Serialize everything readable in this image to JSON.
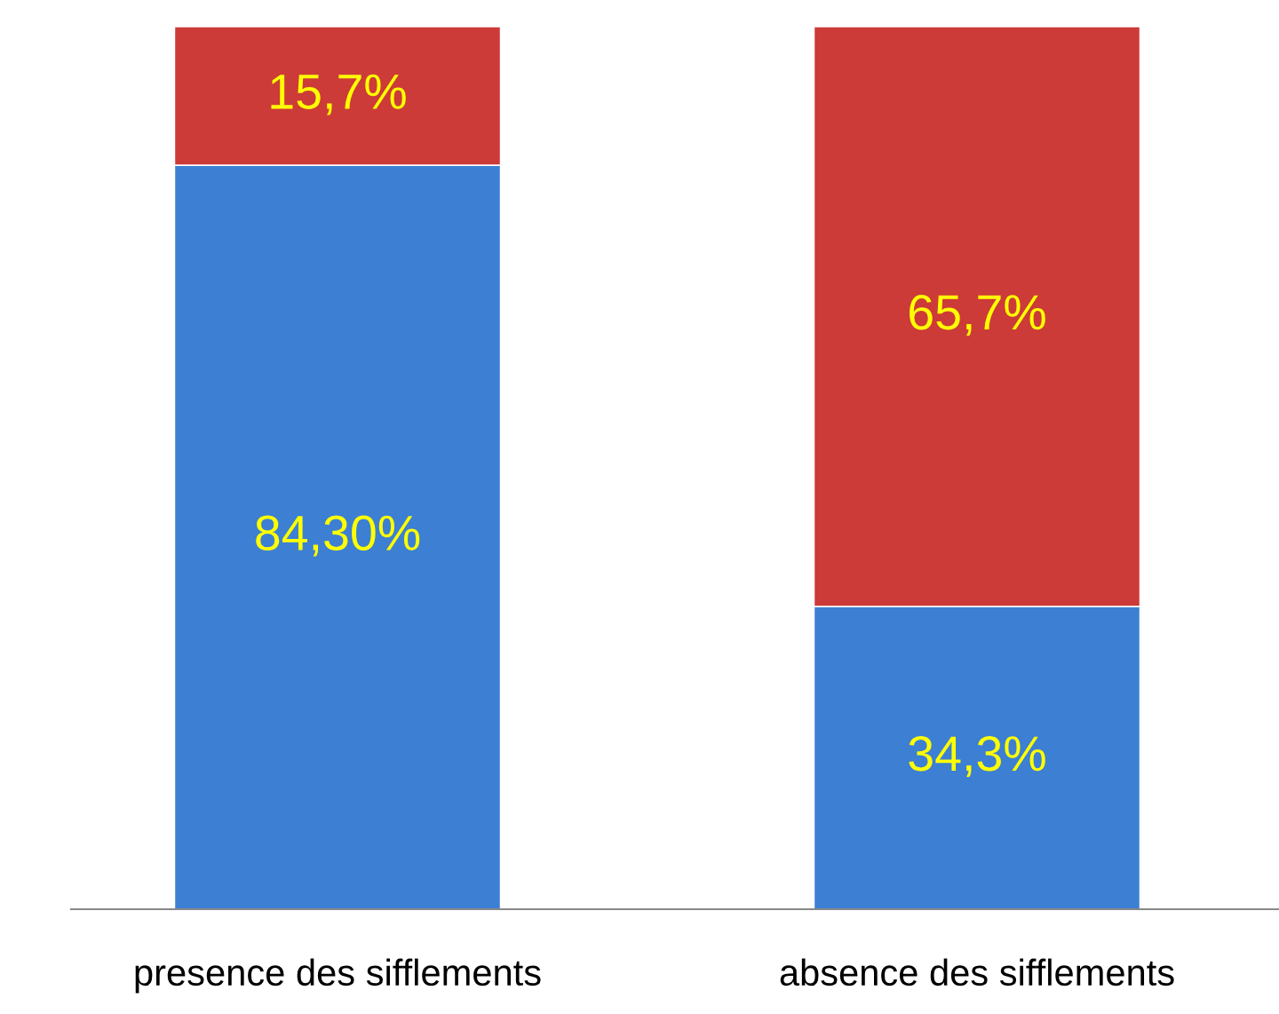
{
  "chart_data": {
    "type": "bar",
    "stacked": true,
    "categories": [
      "presence des sifflements",
      "absence des sifflements"
    ],
    "series": [
      {
        "color": "#3d7fd3",
        "values": [
          84.3,
          34.3
        ],
        "value_labels": [
          "84,30%",
          "34,3%"
        ]
      },
      {
        "color": "#cc3b38",
        "values": [
          15.7,
          65.7
        ],
        "value_labels": [
          "15,7%",
          "65,7%"
        ]
      }
    ],
    "ylim": [
      0,
      100
    ],
    "tick_labels": "x",
    "grid": false,
    "legend": false
  }
}
